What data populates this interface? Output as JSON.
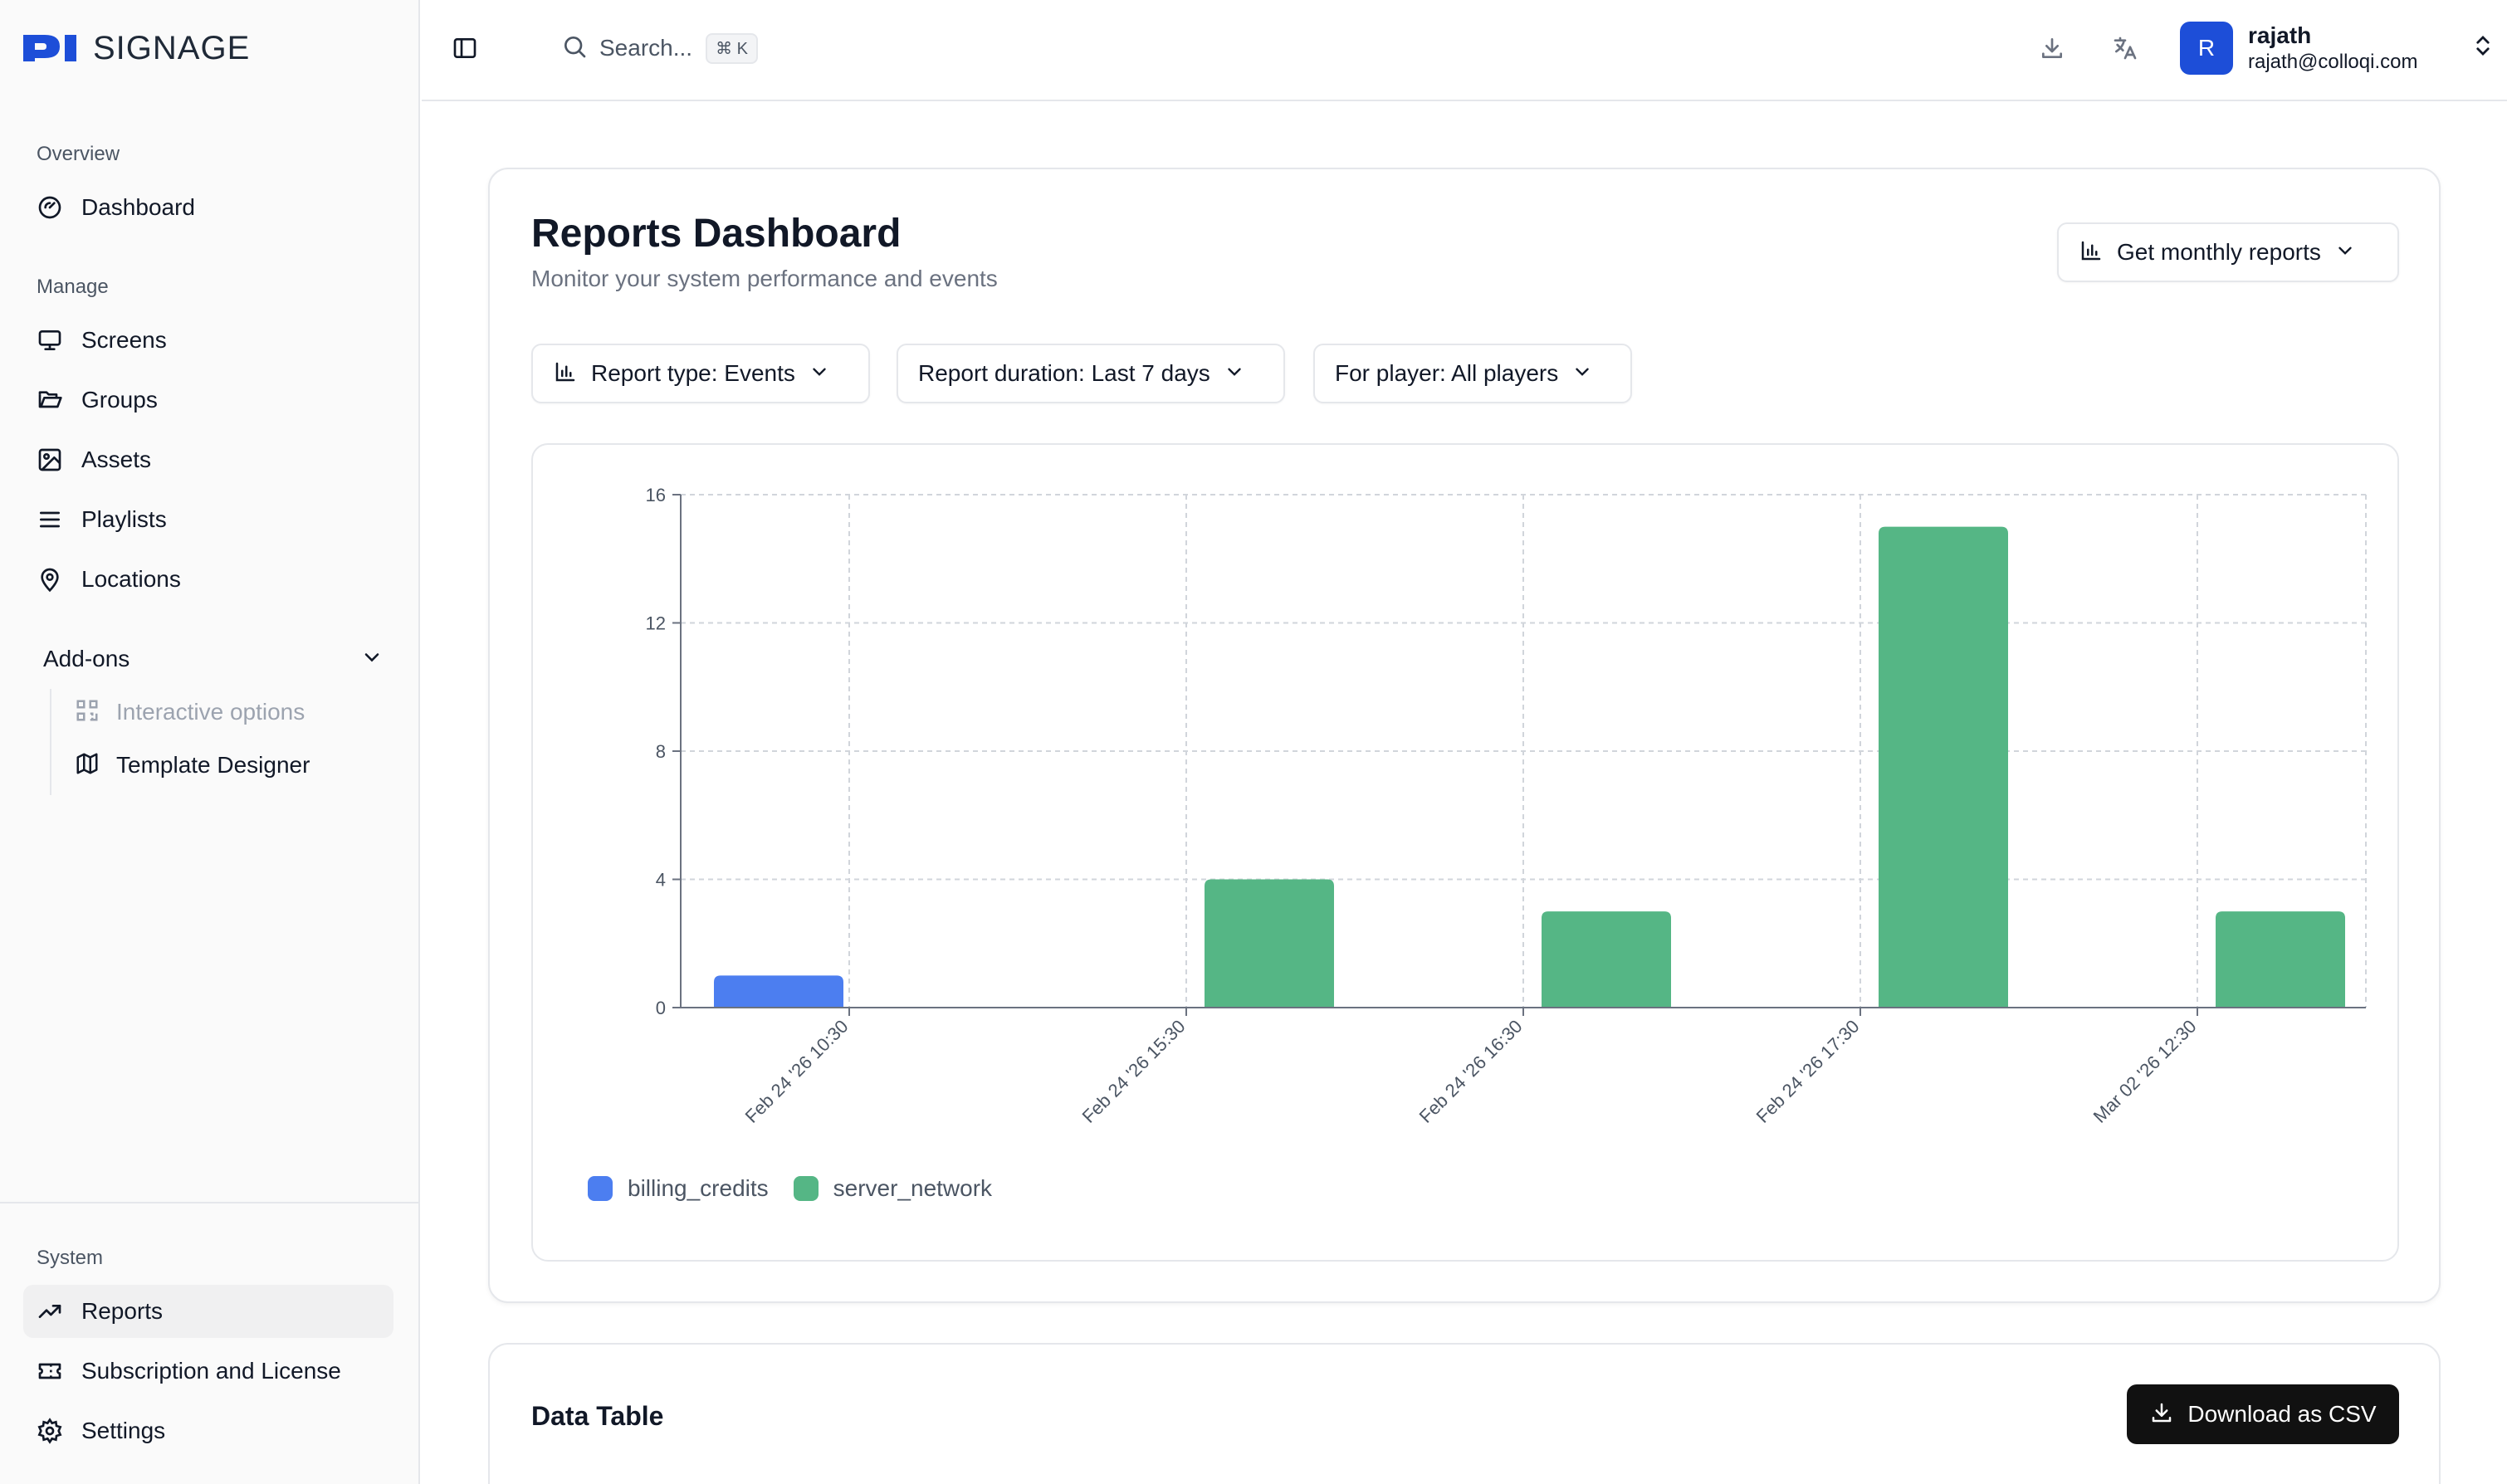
{
  "brand": {
    "logo_text": "SIGNAGE"
  },
  "sidebar": {
    "overview_title": "Overview",
    "dashboard": "Dashboard",
    "manage_title": "Manage",
    "manage_items": [
      "Screens",
      "Groups",
      "Assets",
      "Playlists",
      "Locations"
    ],
    "addons_label": "Add-ons",
    "addons_items": [
      "Interactive options",
      "Template Designer"
    ],
    "system_title": "System",
    "system_items": [
      "Reports",
      "Subscription and License",
      "Settings"
    ]
  },
  "topbar": {
    "search_placeholder": "Search...",
    "search_shortcut": "⌘ K",
    "user": {
      "initial": "R",
      "name": "rajath",
      "email": "rajath@colloqi.com"
    }
  },
  "report": {
    "title": "Reports Dashboard",
    "subtitle": "Monitor your system performance and events",
    "monthly_button": "Get monthly reports",
    "filters": {
      "type": "Report type: Events",
      "duration": "Report duration: Last 7 days",
      "player": "For player: All players"
    }
  },
  "chart_data": {
    "type": "bar",
    "categories": [
      "Feb 24 '26 10:30",
      "Feb 24 '26 15:30",
      "Feb 24 '26 16:30",
      "Feb 24 '26 17:30",
      "Mar 02 '26 12:30"
    ],
    "series": [
      {
        "name": "billing_credits",
        "color": "#4c7ef0",
        "values": [
          1,
          0,
          0,
          0,
          0
        ]
      },
      {
        "name": "server_network",
        "color": "#55b685",
        "values": [
          0,
          4,
          3,
          15,
          3
        ]
      }
    ],
    "ylim": [
      0,
      16
    ],
    "yticks": [
      0,
      4,
      8,
      12,
      16
    ],
    "grid": true,
    "legend_position": "bottom-left"
  },
  "data_table": {
    "title": "Data Table",
    "download_button": "Download as CSV"
  }
}
